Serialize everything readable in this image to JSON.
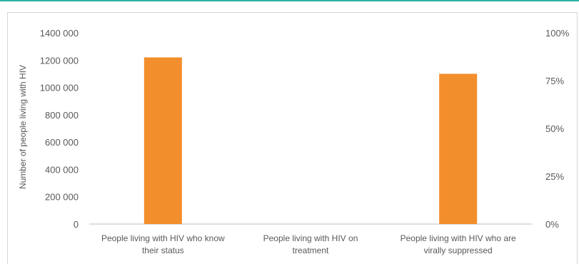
{
  "chart_data": {
    "type": "bar",
    "title": "",
    "ylabel": "Number of people living with HIV",
    "categories": [
      [
        "People living with HIV who know",
        "their status"
      ],
      [
        "People living with HIV on",
        "treatment"
      ],
      [
        "People living with HIV who are",
        "virally suppressed"
      ]
    ],
    "series": [
      {
        "values": [
          1220000,
          null,
          1100000
        ],
        "color": "#f28e2c"
      }
    ],
    "ylim": [
      0,
      1400000
    ],
    "yticks": [
      "1400 000",
      "1200 000",
      "1000 000",
      "800 000",
      "600 000",
      "400 000",
      "200 000",
      "0"
    ],
    "y2ticks": [
      "100%",
      "75%",
      "50%",
      "25%",
      "0%"
    ],
    "grid": false
  },
  "colors": {
    "accent_rule": "#2bb3a3",
    "bar": "#f28e2c",
    "axis": "#bfbfbf"
  }
}
